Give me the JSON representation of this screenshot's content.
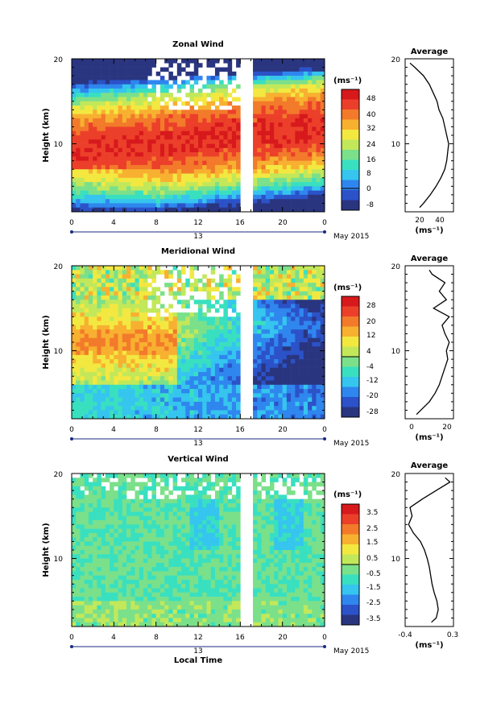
{
  "chart_data": [
    {
      "type": "heatmap",
      "title": "Zonal Wind",
      "ylabel": "Height (km)",
      "y_ticks": [
        "10",
        "20"
      ],
      "x_ticks": [
        "0",
        "4",
        "8",
        "12",
        "16",
        "20",
        "0"
      ],
      "date_label": "13",
      "month_label": "May 2015",
      "colorbar_unit": "(ms⁻¹)",
      "colorbar_ticks": [
        "48",
        "40",
        "32",
        "24",
        "16",
        "8",
        "0",
        "-8"
      ],
      "xlim": [
        0,
        24
      ],
      "ylim": [
        2,
        20
      ],
      "gap_hours": [
        16.0,
        17.0
      ],
      "profile": {
        "title": "Average",
        "x_ticks": [
          "20",
          "40"
        ],
        "xlabel": "(ms⁻¹)",
        "y_ticks": [
          "10",
          "20"
        ],
        "height": [
          2.5,
          3,
          4,
          5,
          6,
          7,
          8,
          9,
          10,
          11,
          12,
          13,
          14,
          15,
          16,
          17,
          18,
          19,
          19.5
        ],
        "value": [
          20,
          24,
          31,
          37,
          42,
          46,
          48,
          49,
          50,
          48,
          46,
          44,
          40,
          38,
          34,
          30,
          24,
          15,
          10
        ]
      }
    },
    {
      "type": "heatmap",
      "title": "Meridional Wind",
      "ylabel": "Height (km)",
      "y_ticks": [
        "10",
        "20"
      ],
      "x_ticks": [
        "0",
        "4",
        "8",
        "12",
        "16",
        "20",
        "0"
      ],
      "date_label": "13",
      "month_label": "May 2015",
      "colorbar_unit": "(ms⁻¹)",
      "colorbar_ticks": [
        "28",
        "20",
        "12",
        "4",
        "-4",
        "-12",
        "-20",
        "-28"
      ],
      "xlim": [
        0,
        24
      ],
      "ylim": [
        2,
        20
      ],
      "gap_hours": [
        16.0,
        17.0
      ],
      "profile": {
        "title": "Average",
        "x_ticks": [
          "0",
          "20"
        ],
        "xlabel": "(ms⁻¹)",
        "y_ticks": [
          "10",
          "20"
        ],
        "height": [
          2.5,
          3,
          4,
          5,
          6,
          7,
          8,
          9,
          10,
          11,
          12,
          13,
          14,
          15,
          16,
          17,
          18,
          19,
          19.5
        ],
        "value": [
          0,
          3,
          9,
          13,
          16,
          18,
          20,
          22,
          21,
          23,
          20,
          18,
          23,
          12,
          21,
          16,
          20,
          11,
          9
        ]
      }
    },
    {
      "type": "heatmap",
      "title": "Vertical Wind",
      "ylabel": "Height (km)",
      "xlabel": "Local Time",
      "y_ticks": [
        "10",
        "20"
      ],
      "x_ticks": [
        "0",
        "4",
        "8",
        "12",
        "16",
        "20",
        "0"
      ],
      "date_label": "13",
      "month_label": "May 2015",
      "colorbar_unit": "(ms⁻¹)",
      "colorbar_ticks": [
        "3.5",
        "2.5",
        "1.5",
        "0.5",
        "-0.5",
        "-1.5",
        "-2.5",
        "-3.5"
      ],
      "xlim": [
        0,
        24
      ],
      "ylim": [
        2,
        20
      ],
      "gap_hours": [
        16.0,
        17.0
      ],
      "profile": {
        "title": "Average",
        "x_ticks": [
          "-0.4",
          "0.3"
        ],
        "xlabel": "(ms⁻¹)",
        "y_ticks": [
          "10",
          "20"
        ],
        "height": [
          2.5,
          3,
          4,
          5,
          6,
          7,
          8,
          9,
          10,
          11,
          12,
          13,
          14,
          15,
          16,
          17,
          18,
          19,
          19.5
        ],
        "value": [
          -0.02,
          0.05,
          0.08,
          0.06,
          0.02,
          -0.01,
          -0.03,
          -0.05,
          -0.08,
          -0.12,
          -0.18,
          -0.28,
          -0.35,
          -0.3,
          -0.33,
          -0.15,
          0.05,
          0.25,
          0.18
        ]
      }
    }
  ],
  "colors": {
    "scale": [
      "#2a3580",
      "#2b52c8",
      "#2f86ee",
      "#35c5ee",
      "#39e0c0",
      "#7be08a",
      "#c2e85a",
      "#f3e840",
      "#f8b030",
      "#f27a2a",
      "#ec3f2a",
      "#d7191c"
    ]
  }
}
